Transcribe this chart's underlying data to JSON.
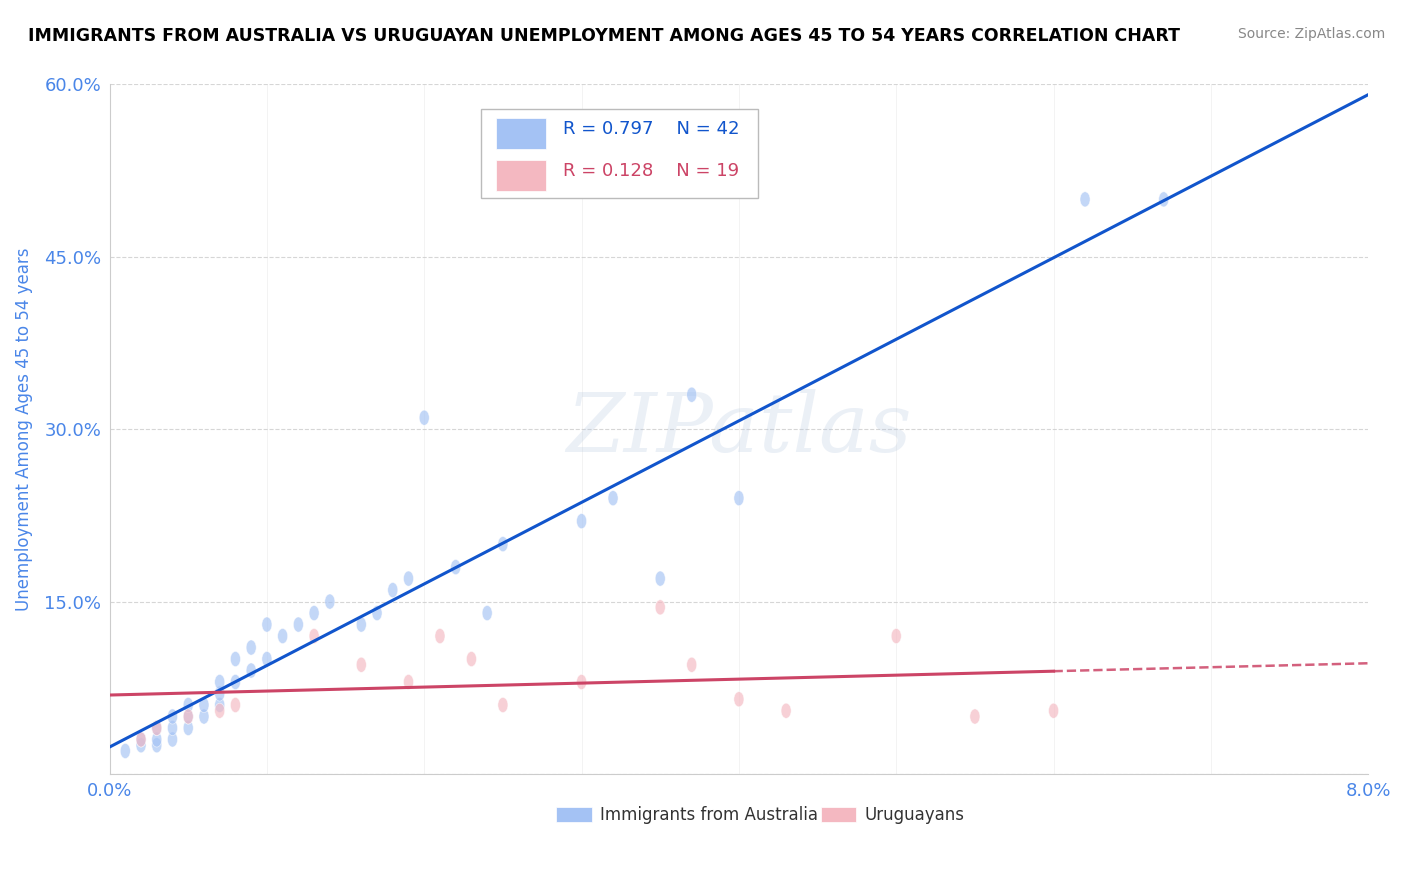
{
  "title": "IMMIGRANTS FROM AUSTRALIA VS URUGUAYAN UNEMPLOYMENT AMONG AGES 45 TO 54 YEARS CORRELATION CHART",
  "source": "Source: ZipAtlas.com",
  "ylabel": "Unemployment Among Ages 45 to 54 years",
  "xlim": [
    0.0,
    0.08
  ],
  "ylim": [
    0.0,
    0.6
  ],
  "yticks": [
    0.0,
    0.15,
    0.3,
    0.45,
    0.6
  ],
  "ytick_labels": [
    "",
    "15.0%",
    "30.0%",
    "45.0%",
    "60.0%"
  ],
  "xtick_labels": [
    "0.0%",
    "8.0%"
  ],
  "blue_R": 0.797,
  "blue_N": 42,
  "pink_R": 0.128,
  "pink_N": 19,
  "blue_color": "#a4c2f4",
  "pink_color": "#f4b8c1",
  "blue_line_color": "#1155cc",
  "pink_line_color": "#cc4466",
  "background_color": "#ffffff",
  "grid_color": "#cccccc",
  "title_color": "#000000",
  "axis_label_color": "#4a86e8",
  "watermark": "ZIPatlas",
  "blue_scatter_x": [
    0.001,
    0.002,
    0.002,
    0.003,
    0.003,
    0.003,
    0.004,
    0.004,
    0.004,
    0.005,
    0.005,
    0.005,
    0.006,
    0.006,
    0.007,
    0.007,
    0.007,
    0.008,
    0.008,
    0.009,
    0.009,
    0.01,
    0.01,
    0.011,
    0.012,
    0.013,
    0.014,
    0.016,
    0.017,
    0.018,
    0.019,
    0.02,
    0.022,
    0.024,
    0.025,
    0.03,
    0.032,
    0.035,
    0.037,
    0.04,
    0.062,
    0.067
  ],
  "blue_scatter_y": [
    0.02,
    0.025,
    0.03,
    0.025,
    0.03,
    0.04,
    0.03,
    0.04,
    0.05,
    0.04,
    0.05,
    0.06,
    0.05,
    0.06,
    0.06,
    0.07,
    0.08,
    0.08,
    0.1,
    0.09,
    0.11,
    0.1,
    0.13,
    0.12,
    0.13,
    0.14,
    0.15,
    0.13,
    0.14,
    0.16,
    0.17,
    0.31,
    0.18,
    0.14,
    0.2,
    0.22,
    0.24,
    0.17,
    0.33,
    0.24,
    0.5,
    0.5
  ],
  "pink_scatter_x": [
    0.002,
    0.003,
    0.005,
    0.007,
    0.008,
    0.013,
    0.016,
    0.019,
    0.021,
    0.023,
    0.025,
    0.03,
    0.035,
    0.037,
    0.04,
    0.043,
    0.05,
    0.055,
    0.06
  ],
  "pink_scatter_y": [
    0.03,
    0.04,
    0.05,
    0.055,
    0.06,
    0.12,
    0.095,
    0.08,
    0.12,
    0.1,
    0.06,
    0.08,
    0.145,
    0.095,
    0.065,
    0.055,
    0.12,
    0.05,
    0.055
  ]
}
